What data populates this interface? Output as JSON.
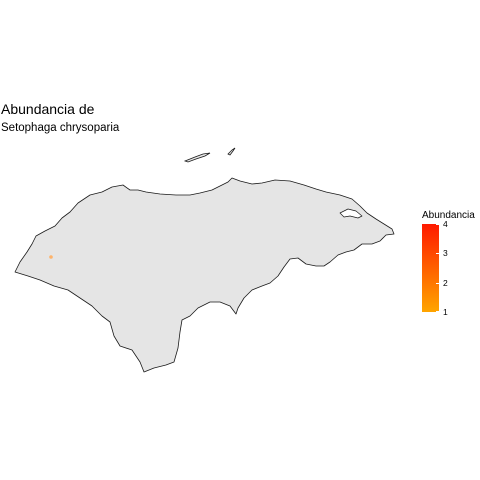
{
  "title": "Abundancia de",
  "subtitle": "Setophaga chrysoparia",
  "map": {
    "region": "Honduras",
    "land_fill": "#e5e5e5",
    "border_color": "#1a1a1a",
    "observations": [
      {
        "abundance": 1,
        "color": "#fdb36b"
      }
    ]
  },
  "legend": {
    "title": "Abundancia",
    "min": 1,
    "max": 4,
    "low_color": "#ffa500",
    "high_color": "#ff1a00",
    "ticks": [
      "1",
      "2",
      "3",
      "4"
    ]
  }
}
